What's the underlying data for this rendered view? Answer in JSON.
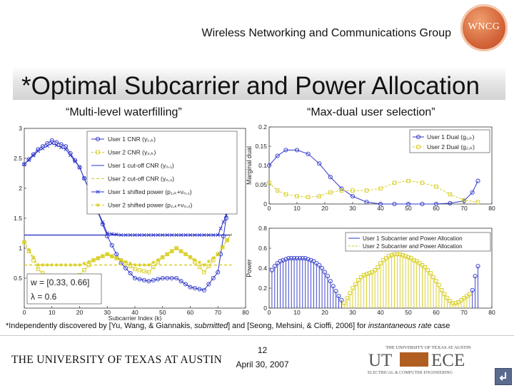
{
  "header": {
    "org": "Wireless Networking and Communications Group",
    "logo_text": "WNCG"
  },
  "slide": {
    "title": "*Optimal Subcarrier and Power Allocation",
    "left_caption": "“Multi-level waterfilling”",
    "right_caption": "“Max-dual user selection”",
    "footnote": "*Independently discovered by [Yu, Wang, & Giannakis, submitted] and [Seong, Mehsini, & Cioffi, 2006] for instantaneous rate case",
    "number": "12",
    "date": "April 30, 2007"
  },
  "footer": {
    "university": "THE UNIVERSITY OF TEXAS AT AUSTIN",
    "ece_top": "THE UNIVERSITY OF TEXAS AT AUSTIN",
    "ece_ut": "UT",
    "ece_name": "ECE",
    "ece_sub": "ELECTRICAL & COMPUTER ENGINEERING"
  },
  "colors": {
    "user1": "#2d35c8",
    "user2": "#d6cc1a",
    "cutoff": "#8a8a1a",
    "accent": "#d4663a"
  },
  "chart_data": [
    {
      "type": "line",
      "id": "waterfilling",
      "xlabel": "Subcarrier Index (k)",
      "ylabel": "",
      "xlim": [
        0,
        80
      ],
      "ylim": [
        0,
        3
      ],
      "xticks": [
        0,
        10,
        20,
        30,
        40,
        50,
        60,
        70,
        80
      ],
      "yticks": [
        0.5,
        1,
        1.5,
        2,
        2.5,
        3
      ],
      "legend_position": "top-right",
      "legend": [
        "User 1 CNR (γ₁,ₖ)",
        "User 2 CNR (γ₂,ₖ)",
        "User 1 cut-off CNR (γ₀,₁)",
        "User 2 cut-off CNR (γ₀,₂)",
        "User 1 shifted power (p₁,ₖ+ν₀,₁)",
        "User 2 shifted power (p₂,ₖ+ν₀,₂)"
      ],
      "annotation_w": "w = [0.33, 0.66]",
      "annotation_lambda": "λ = 0.6",
      "series": [
        {
          "name": "User 1 CNR (γ₁,ₖ)",
          "x": [
            0,
            5,
            10,
            15,
            20,
            25,
            30,
            35,
            40,
            45,
            50,
            55,
            60,
            65,
            70,
            73,
            75
          ],
          "y": [
            2.4,
            2.65,
            2.8,
            2.7,
            2.35,
            1.8,
            1.2,
            0.75,
            0.5,
            0.45,
            0.5,
            0.5,
            0.35,
            0.3,
            0.6,
            1.5,
            2.3
          ]
        },
        {
          "name": "User 2 CNR (γ₂,ₖ)",
          "x": [
            0,
            5,
            10,
            15,
            20,
            25,
            30,
            35,
            40,
            45,
            50,
            55,
            60,
            65,
            70,
            75
          ],
          "y": [
            1.1,
            0.65,
            0.45,
            0.45,
            0.55,
            0.8,
            0.9,
            0.8,
            0.65,
            0.6,
            0.85,
            1.0,
            0.85,
            0.6,
            0.9,
            1.25
          ]
        },
        {
          "name": "User 1 cut-off CNR (γ₀,₁)",
          "x": [
            0,
            75
          ],
          "y": [
            1.22,
            1.22
          ]
        },
        {
          "name": "User 2 cut-off CNR (γ₀,₂)",
          "x": [
            0,
            75
          ],
          "y": [
            0.72,
            0.72
          ]
        },
        {
          "name": "User 1 shifted power (p₁,ₖ+ν₀,₁)",
          "x": [
            0,
            5,
            10,
            15,
            20,
            25,
            30,
            35,
            40,
            45,
            50,
            55,
            60,
            65,
            70,
            73,
            75
          ],
          "y": [
            2.4,
            2.62,
            2.75,
            2.65,
            2.35,
            1.8,
            1.25,
            1.22,
            1.22,
            1.22,
            1.22,
            1.22,
            1.22,
            1.22,
            1.22,
            1.55,
            2.3
          ]
        },
        {
          "name": "User 2 shifted power (p₂,ₖ+ν₀,₂)",
          "x": [
            0,
            5,
            10,
            15,
            20,
            25,
            30,
            35,
            40,
            45,
            50,
            55,
            60,
            65,
            70,
            75
          ],
          "y": [
            1.1,
            0.72,
            0.72,
            0.72,
            0.72,
            0.8,
            0.9,
            0.8,
            0.72,
            0.72,
            0.85,
            1.0,
            0.85,
            0.72,
            0.9,
            1.25
          ]
        }
      ]
    },
    {
      "type": "line",
      "id": "marginal-dual",
      "xlabel": "",
      "ylabel": "Marginal dual",
      "xlim": [
        0,
        80
      ],
      "ylim": [
        0,
        0.2
      ],
      "xticks": [
        0,
        10,
        20,
        30,
        40,
        50,
        60,
        70,
        80
      ],
      "yticks": [
        0,
        0.05,
        0.1,
        0.15,
        0.2
      ],
      "legend_position": "top-right",
      "legend": [
        "User 1 Dual (g₁,ₖ)",
        "User 2 Dual (g₂,ₖ)"
      ],
      "series": [
        {
          "name": "User 1 Dual (g₁,ₖ)",
          "x": [
            0,
            3,
            6,
            10,
            14,
            18,
            22,
            26,
            30,
            35,
            40,
            45,
            50,
            55,
            60,
            65,
            70,
            73,
            75
          ],
          "y": [
            0.1,
            0.125,
            0.14,
            0.14,
            0.13,
            0.105,
            0.07,
            0.04,
            0.02,
            0.005,
            0,
            0,
            0,
            0,
            0,
            0.002,
            0.008,
            0.03,
            0.06
          ]
        },
        {
          "name": "User 2 Dual (g₂,ₖ)",
          "x": [
            0,
            3,
            6,
            10,
            14,
            18,
            22,
            26,
            30,
            35,
            40,
            45,
            50,
            55,
            60,
            65,
            70,
            75
          ],
          "y": [
            0.055,
            0.035,
            0.025,
            0.02,
            0.018,
            0.02,
            0.03,
            0.035,
            0.035,
            0.035,
            0.04,
            0.055,
            0.06,
            0.055,
            0.045,
            0.025,
            0.01,
            0.005
          ]
        }
      ]
    },
    {
      "type": "bar",
      "id": "power-allocation",
      "xlabel": "",
      "ylabel": "Power",
      "xlim": [
        0,
        80
      ],
      "ylim": [
        0,
        0.8
      ],
      "xticks": [
        0,
        10,
        20,
        30,
        40,
        50,
        60,
        70,
        80
      ],
      "yticks": [
        0,
        0.2,
        0.4,
        0.6,
        0.8
      ],
      "legend_position": "top-right",
      "legend": [
        "User 1 Subcarrier and Power Allocation",
        "User 2 Subcarrier and Power Allocation"
      ],
      "series": [
        {
          "name": "User 1 Subcarrier and Power Allocation",
          "x": [
            1,
            2,
            3,
            4,
            5,
            6,
            7,
            8,
            9,
            10,
            11,
            12,
            13,
            14,
            15,
            16,
            17,
            18,
            19,
            20,
            21,
            22,
            23,
            24,
            25,
            26,
            73,
            74,
            75
          ],
          "y": [
            0.38,
            0.42,
            0.45,
            0.47,
            0.48,
            0.49,
            0.5,
            0.5,
            0.5,
            0.5,
            0.5,
            0.5,
            0.5,
            0.49,
            0.48,
            0.47,
            0.45,
            0.43,
            0.4,
            0.36,
            0.32,
            0.27,
            0.22,
            0.17,
            0.12,
            0.08,
            0.18,
            0.32,
            0.42
          ]
        },
        {
          "name": "User 2 Subcarrier and Power Allocation",
          "x": [
            27,
            28,
            29,
            30,
            31,
            32,
            33,
            34,
            35,
            36,
            37,
            38,
            39,
            40,
            41,
            42,
            43,
            44,
            45,
            46,
            47,
            48,
            49,
            50,
            51,
            52,
            53,
            54,
            55,
            56,
            57,
            58,
            59,
            60,
            61,
            62,
            63,
            64,
            65,
            66,
            67,
            68,
            69,
            70,
            71,
            72
          ],
          "y": [
            0.05,
            0.1,
            0.15,
            0.2,
            0.24,
            0.28,
            0.31,
            0.33,
            0.34,
            0.35,
            0.36,
            0.38,
            0.41,
            0.45,
            0.48,
            0.5,
            0.52,
            0.53,
            0.54,
            0.54,
            0.54,
            0.53,
            0.52,
            0.51,
            0.5,
            0.48,
            0.47,
            0.45,
            0.43,
            0.41,
            0.38,
            0.35,
            0.31,
            0.27,
            0.23,
            0.18,
            0.14,
            0.1,
            0.07,
            0.05,
            0.05,
            0.06,
            0.08,
            0.1,
            0.12,
            0.14
          ]
        }
      ]
    }
  ]
}
